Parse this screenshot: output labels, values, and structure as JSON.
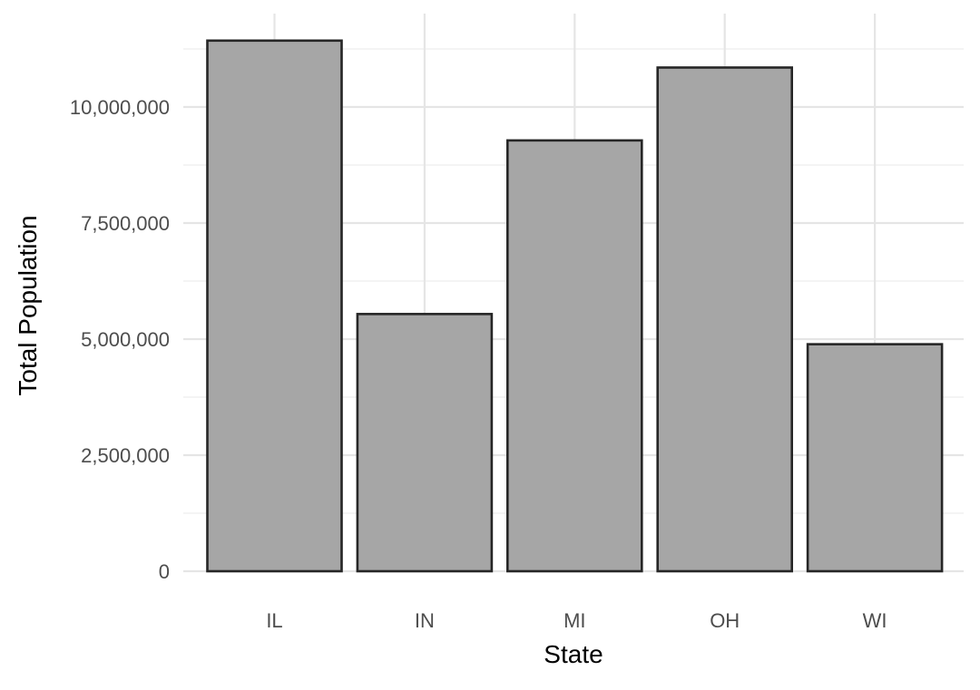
{
  "chart_data": {
    "type": "bar",
    "title": "",
    "xlabel": "State",
    "ylabel": "Total Population",
    "categories": [
      "IL",
      "IN",
      "MI",
      "OH",
      "WI"
    ],
    "values": [
      11430000,
      5540000,
      9280000,
      10850000,
      4890000
    ],
    "ylim": [
      0,
      12000000
    ],
    "yticks": [
      0,
      2500000,
      5000000,
      7500000,
      10000000
    ],
    "ytick_labels": [
      "0",
      "2,500,000",
      "5,000,000",
      "7,500,000",
      "10,000,000"
    ],
    "grid": true,
    "legend": "none",
    "colors": {
      "bar_fill": "#a6a6a6",
      "bar_stroke": "#262626",
      "grid_major": "#e5e5e5",
      "grid_minor": "#f0f0f0",
      "tick_text": "#4d4d4d",
      "axis_title": "#000000"
    }
  }
}
